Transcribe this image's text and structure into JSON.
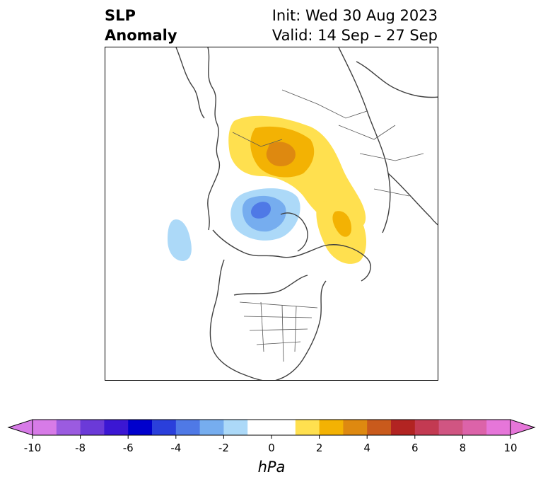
{
  "title": {
    "left_line1": "SLP",
    "left_line2": "Anomaly",
    "right_line1": "Init: Wed 30 Aug 2023",
    "right_line2": "Valid: 14 Sep – 27 Sep"
  },
  "colorbar": {
    "unit_label": "hPa",
    "ticks": [
      "-10",
      "-8",
      "-6",
      "-4",
      "-2",
      "0",
      "2",
      "4",
      "6",
      "8",
      "10"
    ],
    "tick_values": [
      -10,
      -8,
      -6,
      -4,
      -2,
      0,
      2,
      4,
      6,
      8,
      10
    ],
    "range": [
      -10,
      10
    ],
    "bin_width": 1,
    "extend": "both",
    "colors": [
      "#d77be7",
      "#9b5be0",
      "#6b3ad8",
      "#3b17d3",
      "#0000cd",
      "#2a3fdb",
      "#4f79e6",
      "#76adef",
      "#acd9f8",
      "#ffffff",
      "#ffffff",
      "#ffe04f",
      "#f3b203",
      "#de8910",
      "#c95a1c",
      "#b22422",
      "#c33a52",
      "#d05582",
      "#dc63a9",
      "#e676d9"
    ]
  },
  "map": {
    "projection": "north-polar-stereographic",
    "anomalies": [
      {
        "name": "positive-anomaly-europe-russia",
        "sign": "positive",
        "levels_hPa": [
          1,
          2,
          3
        ]
      },
      {
        "name": "positive-anomaly-northern-asia",
        "sign": "positive",
        "levels_hPa": [
          1,
          2
        ]
      },
      {
        "name": "negative-anomaly-arctic",
        "sign": "negative",
        "levels_hPa": [
          -1,
          -2,
          -3
        ]
      },
      {
        "name": "negative-anomaly-north-pacific",
        "sign": "negative",
        "levels_hPa": [
          -1
        ]
      }
    ]
  }
}
